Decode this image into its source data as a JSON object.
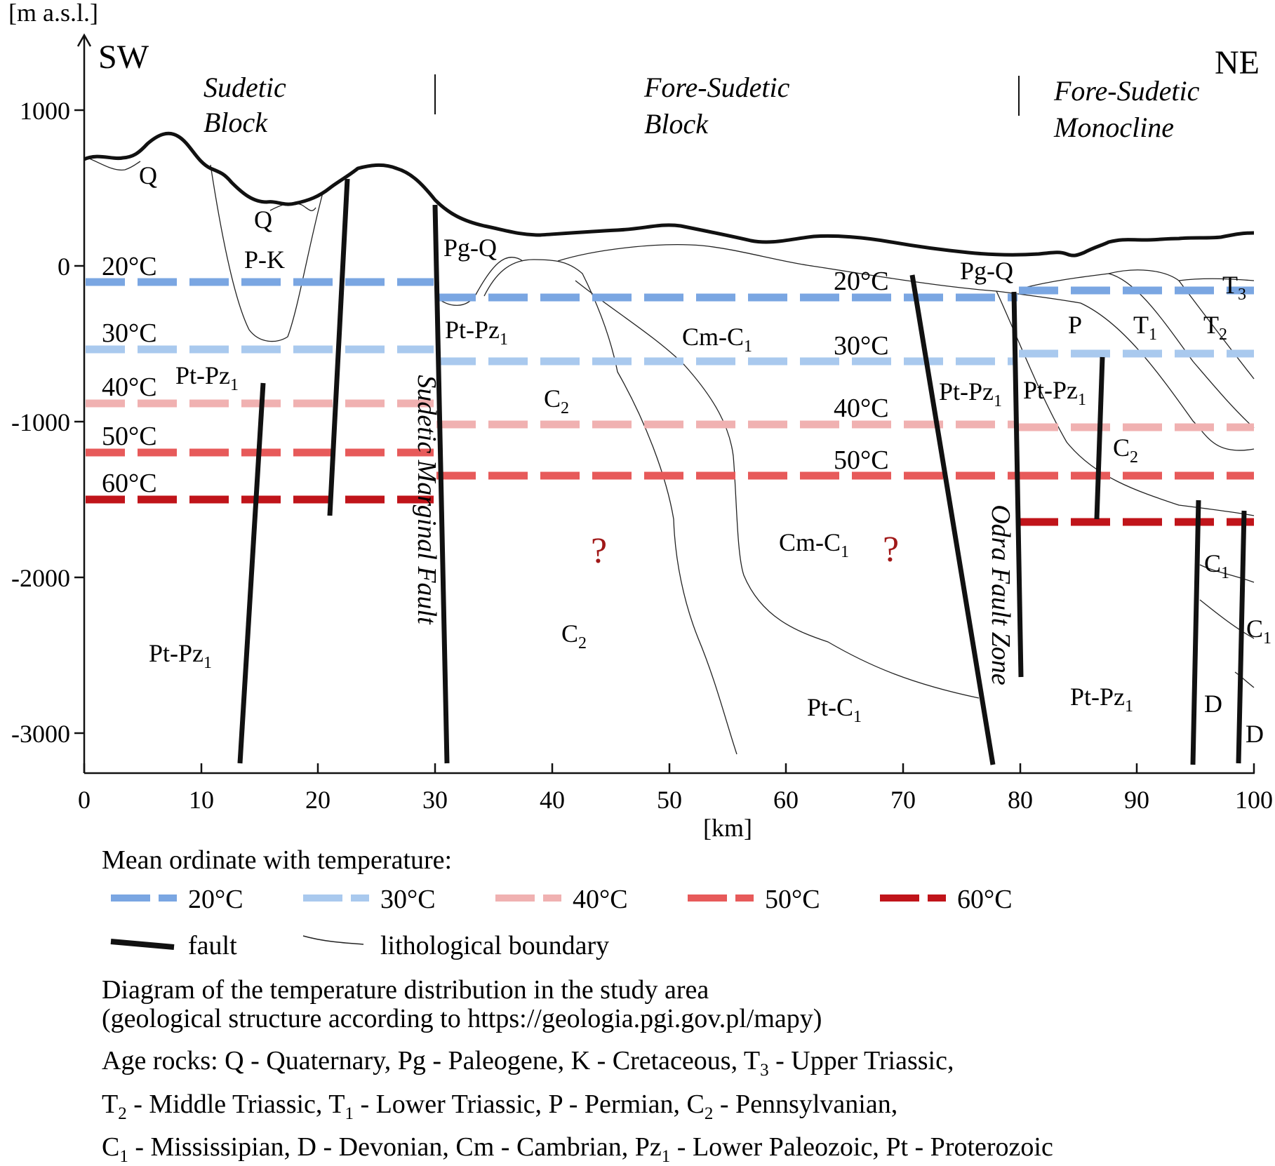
{
  "axes": {
    "y_unit": "[m a.s.l.]",
    "x_unit": "[km]",
    "y_ticks": [
      "1000",
      "0",
      "-1000",
      "-2000",
      "-3000"
    ],
    "x_ticks": [
      "0",
      "10",
      "20",
      "30",
      "40",
      "50",
      "60",
      "70",
      "80",
      "90",
      "100"
    ]
  },
  "directions": {
    "left": "SW",
    "right": "NE"
  },
  "regions": [
    {
      "line1": "Sudetic",
      "line2": "Block"
    },
    {
      "line1": "Fore-Sudetic",
      "line2": "Block"
    },
    {
      "line1": "Fore-Sudetic",
      "line2": "Monocline"
    }
  ],
  "fault_names": {
    "sudetic": "Sudetic Marginal Fault",
    "odra": "Odra Fault Zone"
  },
  "temp_labels": {
    "left": [
      "20°C",
      "30°C",
      "40°C",
      "50°C",
      "60°C"
    ],
    "right": [
      "20°C",
      "30°C",
      "40°C",
      "50°C"
    ]
  },
  "rock_labels": [
    {
      "base": "Q",
      "sub": ""
    },
    {
      "base": "Q",
      "sub": ""
    },
    {
      "base": "P-K",
      "sub": ""
    },
    {
      "base": "Pt-Pz",
      "sub": "1"
    },
    {
      "base": "Pt-Pz",
      "sub": "1"
    },
    {
      "base": "Pg-Q",
      "sub": ""
    },
    {
      "base": "Pt-Pz",
      "sub": "1"
    },
    {
      "base": "Cm-C",
      "sub": "1"
    },
    {
      "base": "C",
      "sub": "2"
    },
    {
      "base": "C",
      "sub": "2"
    },
    {
      "base": "Cm-C",
      "sub": "1"
    },
    {
      "base": "Pt-C",
      "sub": "1"
    },
    {
      "base": "Pg-Q",
      "sub": ""
    },
    {
      "base": "Pt-Pz",
      "sub": "1"
    },
    {
      "base": "Pt-Pz",
      "sub": "1"
    },
    {
      "base": "P",
      "sub": ""
    },
    {
      "base": "T",
      "sub": "1"
    },
    {
      "base": "T",
      "sub": "2"
    },
    {
      "base": "T",
      "sub": "3"
    },
    {
      "base": "C",
      "sub": "2"
    },
    {
      "base": "C",
      "sub": "1"
    },
    {
      "base": "C",
      "sub": "1"
    },
    {
      "base": "Pt-Pz",
      "sub": "1"
    },
    {
      "base": "D",
      "sub": ""
    },
    {
      "base": "D",
      "sub": ""
    }
  ],
  "unknown_marks": [
    "?",
    "?"
  ],
  "legend": {
    "title": "Mean ordinate with temperature:",
    "temps": [
      "20°C",
      "30°C",
      "40°C",
      "50°C",
      "60°C"
    ],
    "fault": "fault",
    "boundary": "lithological boundary"
  },
  "colors": {
    "t20": "#7aa6e2",
    "t30": "#a9c9ee",
    "t40": "#f0b1b1",
    "t50": "#e75a5a",
    "t60": "#c0141a",
    "question": "#a01818"
  },
  "caption": {
    "line1": "Diagram of the temperature distribution in the study area",
    "line2": "(geological structure according to https://geologia.pgi.gov.pl/mapy)"
  },
  "age_rocks": [
    [
      {
        "base": "Age rocks: Q - Quaternary, Pg - Paleogene, K - Cretaceous, T",
        "sub": "3"
      },
      {
        "base": " - Upper Triassic,",
        "sub": ""
      }
    ],
    [
      {
        "base": "T",
        "sub": "2"
      },
      {
        "base": " - Middle Triassic, T",
        "sub": "1"
      },
      {
        "base": " - Lower Triassic, P - Permian, C",
        "sub": "2"
      },
      {
        "base": " - Pennsylvanian,",
        "sub": ""
      }
    ],
    [
      {
        "base": "C",
        "sub": "1"
      },
      {
        "base": " - Mississipian, D - Devonian, Cm - Cambrian, Pz",
        "sub": "1"
      },
      {
        "base": " - Lower Paleozoic, Pt - Proterozoic",
        "sub": ""
      }
    ]
  ]
}
